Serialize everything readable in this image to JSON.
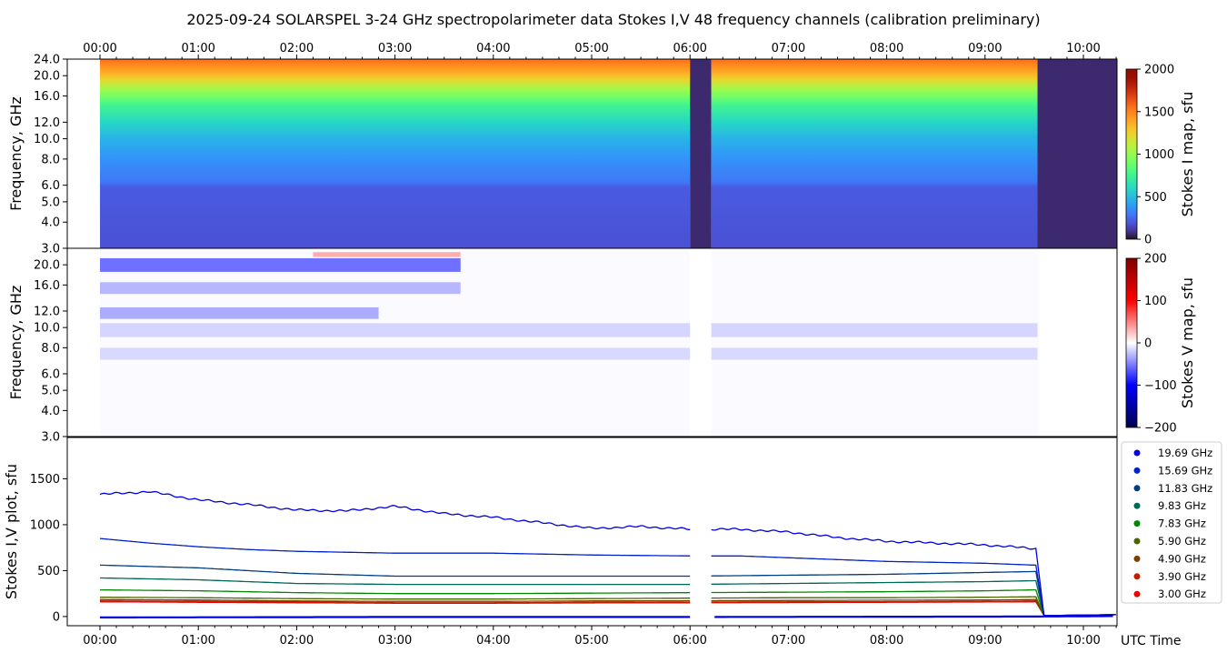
{
  "title": "2025-09-24  SOLARSPEL  3-24 GHz spectropolarimeter data   Stokes I,V   48 frequency channels   (calibration preliminary)",
  "time_ticks": [
    "00:00",
    "01:00",
    "02:00",
    "03:00",
    "04:00",
    "05:00",
    "06:00",
    "07:00",
    "08:00",
    "09:00",
    "10:00"
  ],
  "x_label": "UTC Time",
  "chart_data": [
    {
      "type": "heatmap",
      "name": "stokes_i_map",
      "ylabel": "Frequency, GHz",
      "yticks": [
        "3.0",
        "4.0",
        "5.0",
        "6.0",
        "8.0",
        "10.0",
        "12.0",
        "16.0",
        "20.0",
        "24.0"
      ],
      "ylim": [
        3.0,
        24.0
      ],
      "x_range": [
        "00:00",
        "10:20"
      ],
      "colorbar": {
        "label": "Stokes I map, sfu",
        "ticks": [
          "0",
          "500",
          "1000",
          "1500",
          "2000"
        ],
        "range": [
          0,
          2000
        ],
        "colormap": "turbo"
      },
      "data_start": "00:00",
      "gap": [
        "06:00",
        "06:13"
      ],
      "signal_end": "09:32",
      "stops": [
        {
          "f": 3.0,
          "v": 180
        },
        {
          "f": 5.9,
          "v": 210
        },
        {
          "f": 6.2,
          "v": 290
        },
        {
          "f": 8.0,
          "v": 370
        },
        {
          "f": 10.0,
          "v": 470
        },
        {
          "f": 12.0,
          "v": 600
        },
        {
          "f": 14.5,
          "v": 760
        },
        {
          "f": 16.0,
          "v": 920
        },
        {
          "f": 17.5,
          "v": 1050
        },
        {
          "f": 19.0,
          "v": 1220
        },
        {
          "f": 20.5,
          "v": 1360
        },
        {
          "f": 22.5,
          "v": 1480
        },
        {
          "f": 24.0,
          "v": 1560
        }
      ]
    },
    {
      "type": "heatmap",
      "name": "stokes_v_map",
      "ylabel": "Frequency, GHz",
      "yticks": [
        "3.0",
        "4.0",
        "5.0",
        "6.0",
        "8.0",
        "10.0",
        "12.0",
        "16.0",
        "20.0"
      ],
      "ylim": [
        3.0,
        24.0
      ],
      "x_range": [
        "00:00",
        "10:20"
      ],
      "colorbar": {
        "label": "Stokes V map, sfu",
        "ticks": [
          "−200",
          "−100",
          "0",
          "100",
          "200"
        ],
        "range": [
          -200,
          200
        ],
        "colormap": "seismic"
      },
      "bands": [
        {
          "f1": 18.5,
          "f2": 21.5,
          "v": -70,
          "end": "03:40"
        },
        {
          "f1": 14.5,
          "f2": 16.5,
          "v": -35,
          "end": "03:40"
        },
        {
          "f1": 11.0,
          "f2": 12.5,
          "v": -40,
          "end": "02:50"
        },
        {
          "f1": 9.0,
          "f2": 10.5,
          "v": -20,
          "end": "09:32"
        },
        {
          "f1": 7.0,
          "f2": 8.0,
          "v": -18,
          "end": "09:32"
        },
        {
          "f1": 21.8,
          "f2": 23.0,
          "v": 40,
          "start": "02:10",
          "end": "03:40"
        }
      ]
    },
    {
      "type": "line",
      "name": "stokes_plot",
      "ylabel": "Stokes I,V plot, sfu",
      "yticks": [
        "0",
        "500",
        "1000",
        "1500"
      ],
      "ylim": [
        -100,
        1950
      ],
      "x_range": [
        "00:00",
        "10:20"
      ],
      "gap": [
        "06:00",
        "06:13"
      ],
      "signal_end": "09:32",
      "drop_end": "09:36",
      "series": [
        {
          "name": "19.69 GHz",
          "color": "#0000e0",
          "t": [
            "00:00",
            "00:30",
            "01:00",
            "01:30",
            "02:00",
            "02:30",
            "03:00",
            "03:30",
            "04:00",
            "04:30",
            "05:00",
            "05:30",
            "06:00",
            "06:30",
            "07:00",
            "07:30",
            "08:00",
            "08:30",
            "09:00",
            "09:30"
          ],
          "values": [
            1330,
            1360,
            1270,
            1220,
            1160,
            1150,
            1200,
            1120,
            1080,
            1020,
            960,
            980,
            950,
            950,
            920,
            860,
            820,
            800,
            780,
            740
          ]
        },
        {
          "name": "15.69 GHz",
          "color": "#0022cc",
          "t": [
            "00:00",
            "00:30",
            "01:00",
            "01:30",
            "02:00",
            "03:00",
            "04:00",
            "05:00",
            "06:00",
            "06:30",
            "07:00",
            "08:00",
            "09:00",
            "09:30"
          ],
          "values": [
            850,
            800,
            760,
            730,
            710,
            690,
            690,
            670,
            660,
            660,
            640,
            600,
            580,
            560
          ]
        },
        {
          "name": "11.83 GHz",
          "color": "#003e80",
          "t": [
            "00:00",
            "01:00",
            "02:00",
            "03:00",
            "04:00",
            "05:00",
            "06:00",
            "07:00",
            "08:00",
            "09:00",
            "09:30"
          ],
          "values": [
            560,
            530,
            470,
            440,
            440,
            440,
            440,
            450,
            460,
            480,
            490
          ]
        },
        {
          "name": "9.83 GHz",
          "color": "#006655",
          "t": [
            "00:00",
            "01:00",
            "02:00",
            "03:00",
            "04:00",
            "05:00",
            "06:00",
            "07:00",
            "08:00",
            "09:00",
            "09:30"
          ],
          "values": [
            420,
            400,
            360,
            350,
            350,
            350,
            350,
            360,
            370,
            380,
            390
          ]
        },
        {
          "name": "7.83 GHz",
          "color": "#008800",
          "t": [
            "00:00",
            "01:00",
            "02:00",
            "03:00",
            "04:00",
            "05:00",
            "06:00",
            "07:00",
            "08:00",
            "09:00",
            "09:30"
          ],
          "values": [
            290,
            280,
            260,
            250,
            250,
            255,
            260,
            265,
            270,
            280,
            290
          ]
        },
        {
          "name": "5.90 GHz",
          "color": "#4a6400",
          "t": [
            "00:00",
            "01:00",
            "02:00",
            "03:00",
            "04:00",
            "05:00",
            "06:00",
            "07:00",
            "08:00",
            "09:00",
            "09:30"
          ],
          "values": [
            210,
            205,
            195,
            190,
            190,
            195,
            200,
            205,
            205,
            210,
            215
          ]
        },
        {
          "name": "4.90 GHz",
          "color": "#7a4000",
          "t": [
            "00:00",
            "01:00",
            "02:00",
            "03:00",
            "04:00",
            "05:00",
            "06:00",
            "07:00",
            "08:00",
            "09:00",
            "09:30"
          ],
          "values": [
            185,
            180,
            170,
            165,
            165,
            170,
            172,
            175,
            178,
            180,
            185
          ]
        },
        {
          "name": "3.90 GHz",
          "color": "#c02000",
          "t": [
            "00:00",
            "01:00",
            "02:00",
            "03:00",
            "04:00",
            "05:00",
            "06:00",
            "07:00",
            "08:00",
            "09:00",
            "09:30"
          ],
          "values": [
            170,
            165,
            160,
            150,
            150,
            155,
            158,
            160,
            162,
            165,
            170
          ]
        },
        {
          "name": "3.00 GHz",
          "color": "#ee0000",
          "t": [
            "00:00",
            "01:00",
            "02:00",
            "03:00",
            "04:00",
            "05:00",
            "06:00",
            "07:00",
            "08:00",
            "09:00",
            "09:30"
          ],
          "values": [
            160,
            155,
            150,
            145,
            145,
            148,
            150,
            152,
            155,
            158,
            160
          ]
        }
      ],
      "stokes_v_baseline": {
        "color": "#0000dd",
        "t": [
          "00:00",
          "03:00",
          "06:00",
          "09:30",
          "10:20"
        ],
        "values": [
          -10,
          -5,
          -5,
          0,
          5
        ]
      }
    }
  ]
}
